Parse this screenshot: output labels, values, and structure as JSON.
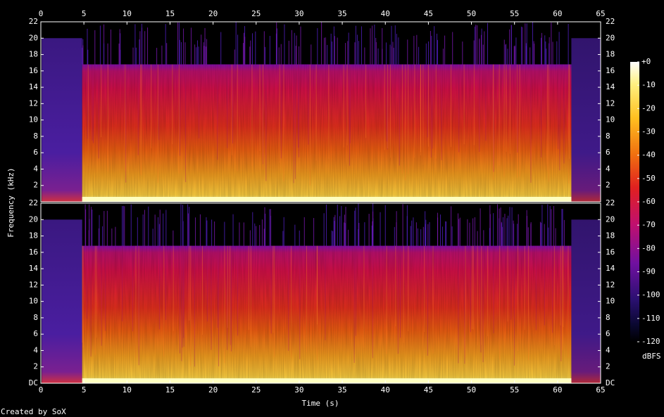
{
  "footer": "Created by SoX",
  "chart_data": [
    {
      "type": "spectrogram",
      "xlim": [
        0,
        65
      ],
      "xticks": [
        0,
        5,
        10,
        15,
        20,
        25,
        30,
        35,
        40,
        45,
        50,
        55,
        60,
        65
      ],
      "ylim": [
        0,
        22
      ],
      "yticks": [
        2,
        4,
        6,
        8,
        10,
        12,
        14,
        16,
        18,
        20,
        22
      ]
    },
    {
      "type": "spectrogram",
      "xlabel": "Time (s)",
      "ylabel": "Frequency (kHz)",
      "xlim": [
        0,
        65
      ],
      "xticks": [
        0,
        5,
        10,
        15,
        20,
        25,
        30,
        35,
        40,
        45,
        50,
        55,
        60,
        65
      ],
      "ylim": [
        0,
        22
      ],
      "yticks": [
        {
          "value": 0,
          "label": "DC"
        },
        2,
        4,
        6,
        8,
        10,
        12,
        14,
        16,
        18,
        20,
        22
      ],
      "colorbar": {
        "label": "dBFS",
        "zlim": [
          -120,
          0
        ],
        "zticks": [
          {
            "value": 0,
            "label": "+0"
          },
          -10,
          -20,
          -30,
          -40,
          -50,
          -60,
          -70,
          -80,
          -90,
          -100,
          -110,
          -120
        ]
      }
    }
  ]
}
